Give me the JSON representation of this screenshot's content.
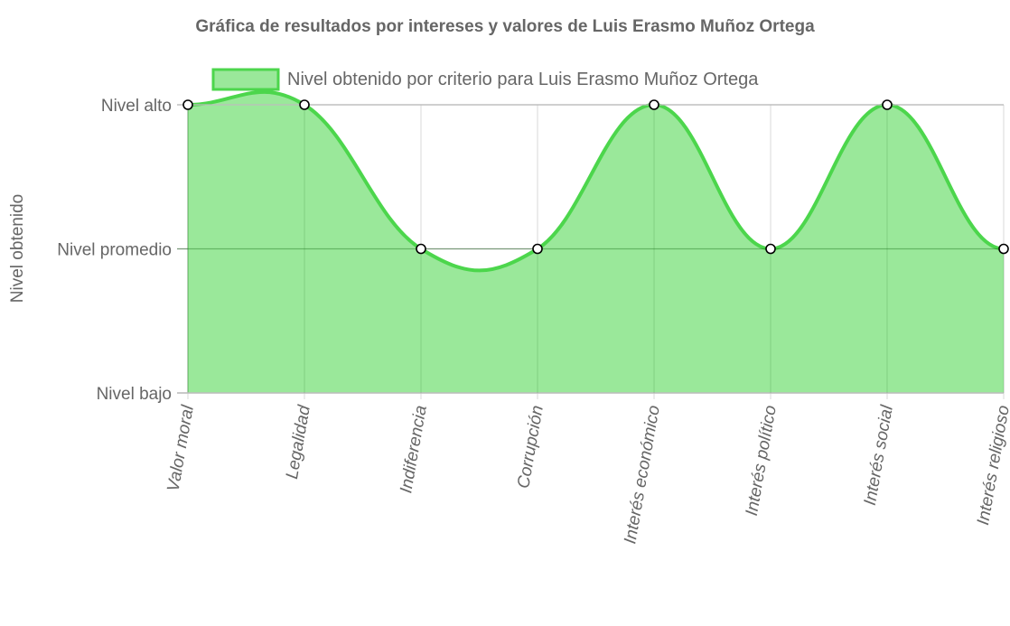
{
  "chart_data": {
    "type": "area",
    "title": "Gráfica de resultados por intereses y valores de Luis Erasmo Muñoz Ortega",
    "ylabel": "Nivel obtenido",
    "xlabel": "",
    "categories": [
      "Valor moral",
      "Legalidad",
      "Indiferencia",
      "Corrupción",
      "Interés económico",
      "Interés político",
      "Interés social",
      "Interés religioso"
    ],
    "y_tick_labels": [
      "Nivel bajo",
      "Nivel promedio",
      "Nivel alto"
    ],
    "ylim": [
      1,
      3
    ],
    "series": [
      {
        "name": "Nivel obtenido por criterio para Luis Erasmo Muñoz Ortega",
        "values": [
          3,
          3,
          2,
          2,
          3,
          2,
          3,
          2
        ]
      }
    ],
    "grid": true,
    "legend_position": "top",
    "colors": {
      "fill": "#9ae89a",
      "line": "#4cd64c",
      "grid": "#e2e2e2",
      "axis": "#bdbdbd",
      "text": "#666666"
    }
  }
}
